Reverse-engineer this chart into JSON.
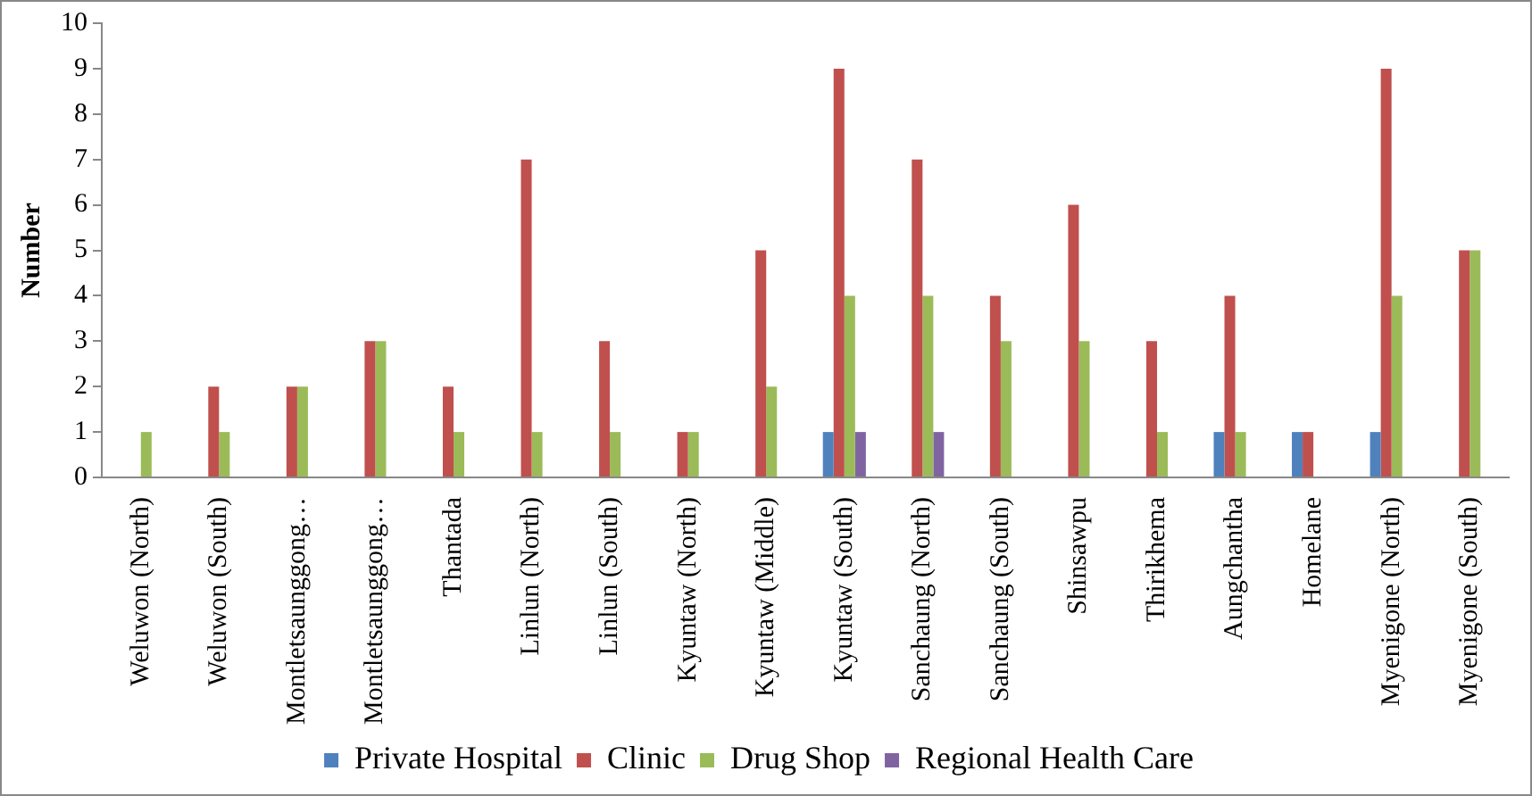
{
  "chart_data": {
    "type": "bar",
    "ylabel": "Number",
    "categories": [
      "Weluwon (North)",
      "Weluwon (South)",
      "Montletsaunggong…",
      "Montletsaunggong…",
      "Thantada",
      "Linlun (North)",
      "Linlun (South)",
      "Kyuntaw (North)",
      "Kyuntaw (Middle)",
      "Kyuntaw (South)",
      "Sanchaung (North)",
      "Sanchaung (South)",
      "Shinsawpu",
      "Thirikhema",
      "Aungchantha",
      "Homelane",
      "Myenigone (North)",
      "Myenigone (South)"
    ],
    "series": [
      {
        "name": "Private Hospital",
        "color": "#4f81bd",
        "values": [
          0,
          0,
          0,
          0,
          0,
          0,
          0,
          0,
          0,
          1,
          0,
          0,
          0,
          0,
          1,
          1,
          1,
          0
        ]
      },
      {
        "name": "Clinic",
        "color": "#c0504d",
        "values": [
          0,
          2,
          2,
          3,
          2,
          7,
          3,
          1,
          5,
          9,
          7,
          4,
          6,
          3,
          4,
          1,
          9,
          5
        ]
      },
      {
        "name": "Drug Shop",
        "color": "#9bbb59",
        "values": [
          1,
          1,
          2,
          3,
          1,
          1,
          1,
          1,
          2,
          4,
          4,
          3,
          3,
          1,
          1,
          0,
          4,
          5
        ]
      },
      {
        "name": "Regional Health Care",
        "color": "#8064a2",
        "values": [
          0,
          0,
          0,
          0,
          0,
          0,
          0,
          0,
          0,
          1,
          1,
          0,
          0,
          0,
          0,
          0,
          0,
          0
        ]
      }
    ],
    "ylim": [
      0,
      10
    ],
    "yticks": [
      0,
      1,
      2,
      3,
      4,
      5,
      6,
      7,
      8,
      9,
      10
    ],
    "grid": false,
    "legend": "bottom"
  }
}
